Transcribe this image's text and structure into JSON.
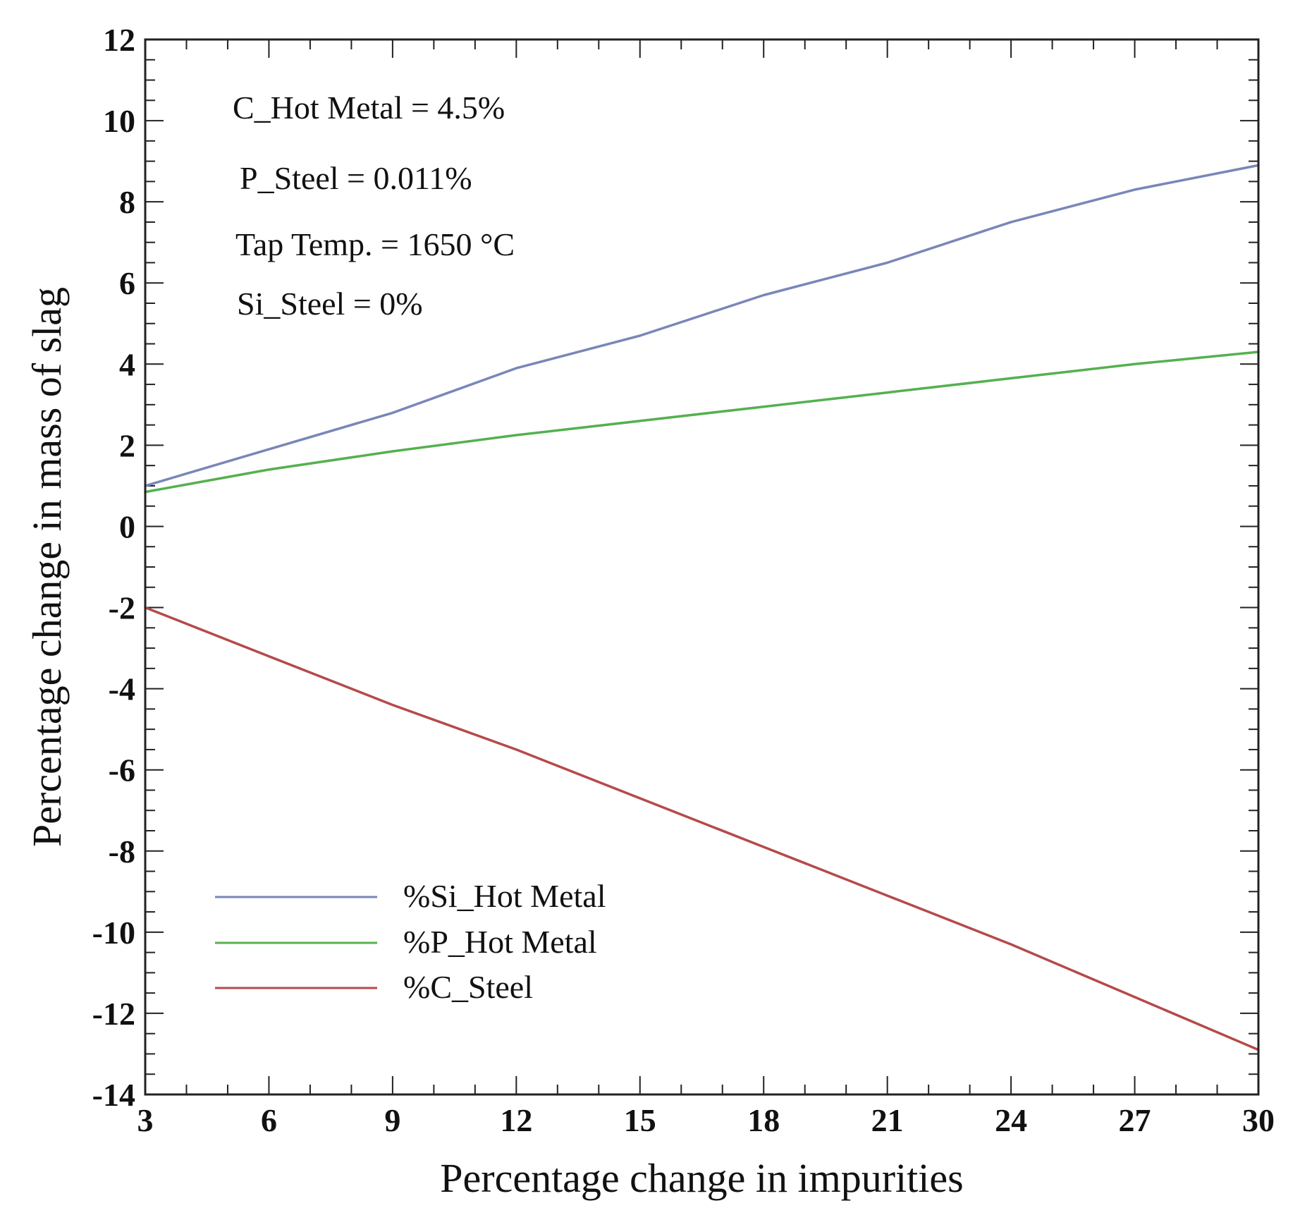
{
  "chart_data": {
    "type": "line",
    "title": "",
    "xlabel": "Percentage change in impurities",
    "ylabel": "Percentage change in mass of slag",
    "xlim": [
      3,
      30
    ],
    "ylim": [
      -14,
      12
    ],
    "xticks": [
      3,
      6,
      9,
      12,
      15,
      18,
      21,
      24,
      27,
      30
    ],
    "yticks": [
      12,
      10,
      8,
      6,
      4,
      2,
      0,
      -2,
      -4,
      -6,
      -8,
      -10,
      -12,
      -14
    ],
    "annotations": [
      "C_Hot Metal = 4.5%",
      "P_Steel = 0.011%",
      "Tap Temp. = 1650 °C",
      "Si_Steel = 0%"
    ],
    "legend_position": "bottom-left",
    "series": [
      {
        "name": "%Si_Hot Metal",
        "color": "#7a86b8",
        "x": [
          3,
          6,
          9,
          12,
          15,
          18,
          21,
          24,
          27,
          30
        ],
        "y": [
          1.0,
          1.9,
          2.8,
          3.9,
          4.7,
          5.7,
          6.5,
          7.5,
          8.3,
          8.9
        ]
      },
      {
        "name": "%P_Hot Metal",
        "color": "#55b04f",
        "x": [
          3,
          6,
          9,
          12,
          15,
          18,
          21,
          24,
          27,
          30
        ],
        "y": [
          0.85,
          1.4,
          1.85,
          2.25,
          2.6,
          2.95,
          3.3,
          3.65,
          4.0,
          4.3
        ]
      },
      {
        "name": "%C_Steel",
        "color": "#b54a4a",
        "x": [
          3,
          6,
          9,
          12,
          15,
          18,
          21,
          24,
          27,
          30
        ],
        "y": [
          -2.0,
          -3.2,
          -4.4,
          -5.5,
          -6.7,
          -7.9,
          -9.1,
          -10.3,
          -11.6,
          -12.9
        ]
      }
    ]
  }
}
